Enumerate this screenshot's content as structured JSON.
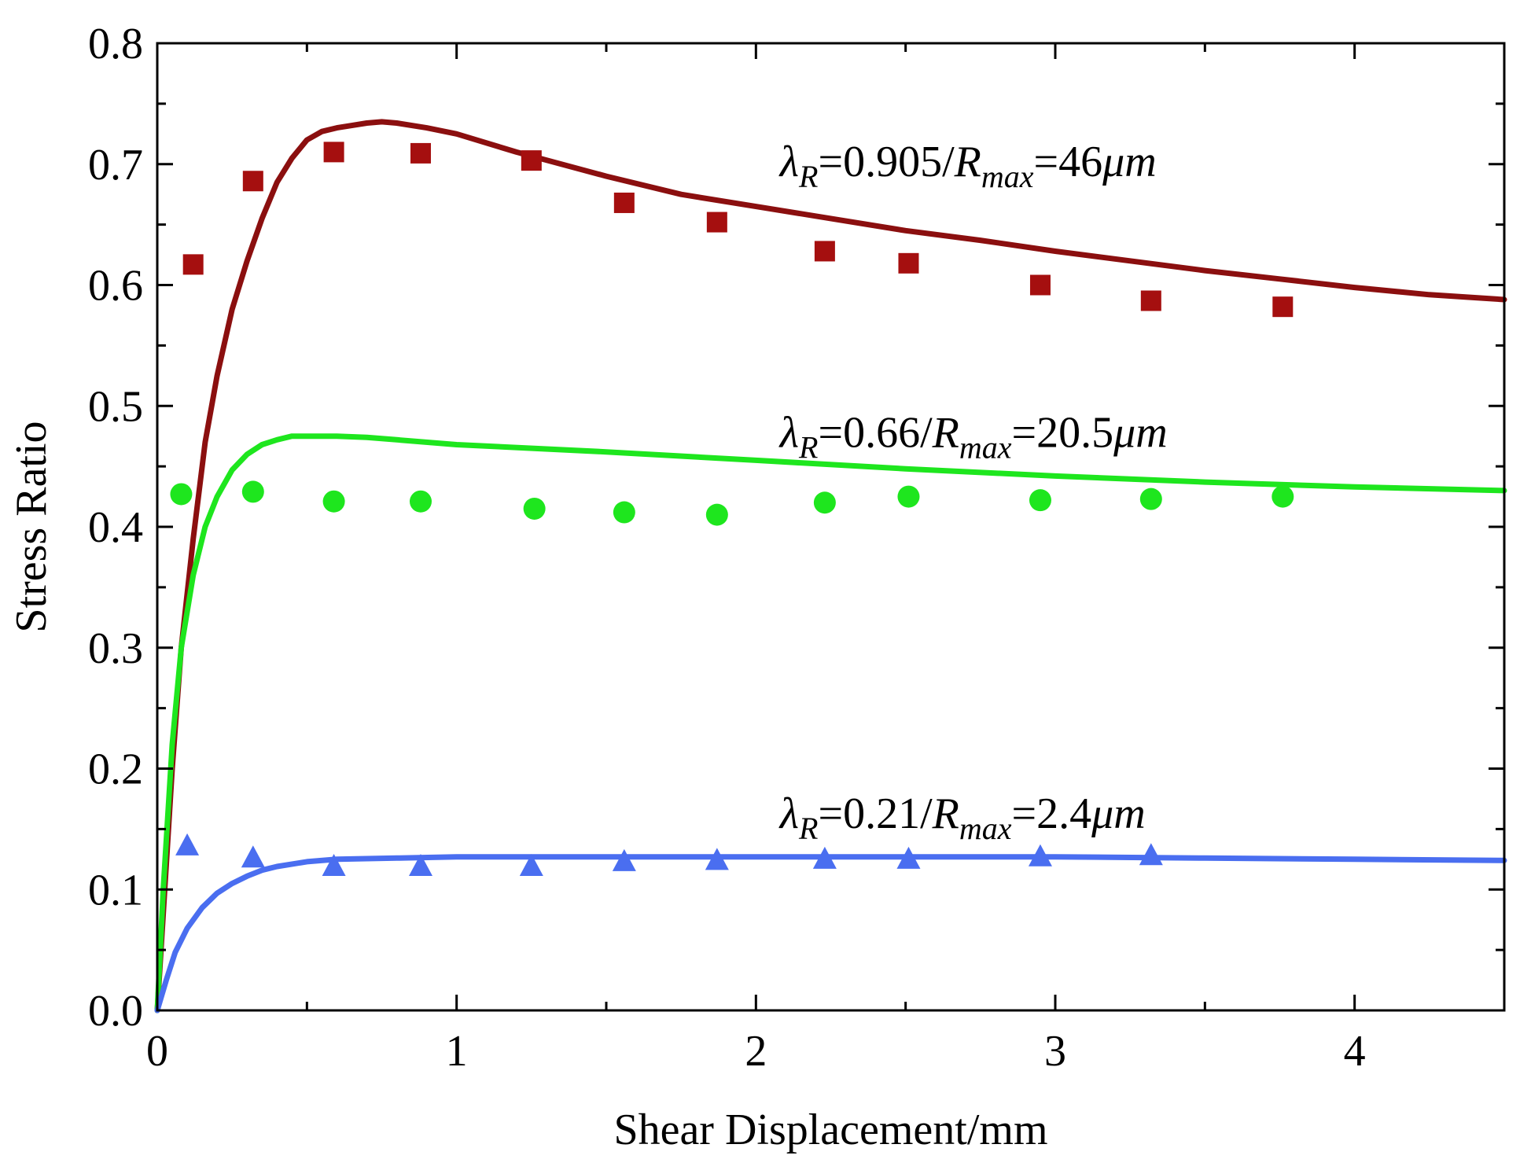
{
  "chart_data": {
    "type": "scatter",
    "xlabel": "Shear Displacement/mm",
    "ylabel": "Stress Ratio",
    "xlim": [
      0,
      4.5
    ],
    "ylim": [
      0,
      0.8
    ],
    "x_ticks": [
      0,
      1,
      2,
      3,
      4
    ],
    "x_tick_labels": [
      "0",
      "1",
      "2",
      "3",
      "4"
    ],
    "y_ticks": [
      0,
      0.1,
      0.2,
      0.3,
      0.4,
      0.5,
      0.6,
      0.7,
      0.8
    ],
    "y_tick_labels": [
      "0.0",
      "0.1",
      "0.2",
      "0.3",
      "0.4",
      "0.5",
      "0.6",
      "0.7",
      "0.8"
    ],
    "grid": false,
    "series": [
      {
        "kind": "points",
        "marker": "square",
        "color": "#A50F0F",
        "x": [
          0.12,
          0.32,
          0.59,
          0.88,
          1.25,
          1.56,
          1.87,
          2.23,
          2.51,
          2.95,
          3.32,
          3.76
        ],
        "y": [
          0.617,
          0.686,
          0.71,
          0.709,
          0.703,
          0.668,
          0.652,
          0.628,
          0.618,
          0.6,
          0.587,
          0.582
        ]
      },
      {
        "kind": "line",
        "color": "#8B0F0F",
        "x": [
          0,
          0.02,
          0.05,
          0.08,
          0.12,
          0.16,
          0.2,
          0.25,
          0.3,
          0.35,
          0.4,
          0.45,
          0.5,
          0.55,
          0.6,
          0.65,
          0.7,
          0.75,
          0.8,
          0.9,
          1.0,
          1.2,
          1.5,
          1.75,
          2.0,
          2.25,
          2.5,
          2.75,
          3.0,
          3.25,
          3.5,
          3.75,
          4.0,
          4.25,
          4.5
        ],
        "y": [
          0.0,
          0.08,
          0.2,
          0.3,
          0.39,
          0.47,
          0.525,
          0.58,
          0.62,
          0.655,
          0.685,
          0.705,
          0.72,
          0.727,
          0.73,
          0.732,
          0.734,
          0.735,
          0.734,
          0.73,
          0.725,
          0.71,
          0.69,
          0.675,
          0.665,
          0.655,
          0.645,
          0.637,
          0.628,
          0.62,
          0.612,
          0.605,
          0.598,
          0.592,
          0.588
        ]
      },
      {
        "kind": "points",
        "marker": "circle",
        "color": "#1EE61E",
        "x": [
          0.08,
          0.32,
          0.59,
          0.88,
          1.26,
          1.56,
          1.87,
          2.23,
          2.51,
          2.95,
          3.32,
          3.76
        ],
        "y": [
          0.427,
          0.429,
          0.421,
          0.421,
          0.415,
          0.412,
          0.41,
          0.42,
          0.425,
          0.422,
          0.423,
          0.425
        ]
      },
      {
        "kind": "line",
        "color": "#1EE61E",
        "x": [
          0,
          0.02,
          0.05,
          0.08,
          0.12,
          0.16,
          0.2,
          0.25,
          0.3,
          0.35,
          0.4,
          0.45,
          0.5,
          0.6,
          0.7,
          0.8,
          1.0,
          1.5,
          2.0,
          2.5,
          3.0,
          3.5,
          4.0,
          4.5
        ],
        "y": [
          0.0,
          0.1,
          0.22,
          0.3,
          0.36,
          0.4,
          0.425,
          0.447,
          0.46,
          0.468,
          0.472,
          0.475,
          0.475,
          0.475,
          0.474,
          0.472,
          0.468,
          0.462,
          0.455,
          0.448,
          0.442,
          0.437,
          0.433,
          0.43
        ]
      },
      {
        "kind": "points",
        "marker": "triangle",
        "color": "#4A6EF0",
        "x": [
          0.1,
          0.32,
          0.59,
          0.88,
          1.25,
          1.56,
          1.87,
          2.23,
          2.51,
          2.95,
          3.32
        ],
        "y": [
          0.136,
          0.126,
          0.119,
          0.119,
          0.119,
          0.123,
          0.124,
          0.125,
          0.125,
          0.127,
          0.128
        ]
      },
      {
        "kind": "line",
        "color": "#4A6EF0",
        "x": [
          0,
          0.03,
          0.06,
          0.1,
          0.15,
          0.2,
          0.25,
          0.3,
          0.35,
          0.4,
          0.5,
          0.6,
          0.8,
          1.0,
          1.5,
          2.0,
          2.5,
          3.0,
          3.5,
          4.0,
          4.5
        ],
        "y": [
          0.0,
          0.025,
          0.048,
          0.068,
          0.085,
          0.097,
          0.105,
          0.111,
          0.116,
          0.119,
          0.123,
          0.125,
          0.126,
          0.127,
          0.127,
          0.127,
          0.127,
          0.127,
          0.126,
          0.125,
          0.124
        ]
      }
    ],
    "annotations": [
      {
        "x": 2.08,
        "y": 0.69,
        "lambda": "λ",
        "lambda_sub": "R",
        "mid": "=0.905/",
        "r": "R",
        "r_sub": "max",
        "tail_num": "=46",
        "tail_unit": "μm"
      },
      {
        "x": 2.08,
        "y": 0.466,
        "lambda": "λ",
        "lambda_sub": "R",
        "mid": "=0.66/",
        "r": "R",
        "r_sub": "max",
        "tail_num": "=20.5",
        "tail_unit": "μm"
      },
      {
        "x": 2.08,
        "y": 0.151,
        "lambda": "λ",
        "lambda_sub": "R",
        "mid": "=0.21/",
        "r": "R",
        "r_sub": "max",
        "tail_num": "=2.4",
        "tail_unit": "μm"
      }
    ]
  }
}
